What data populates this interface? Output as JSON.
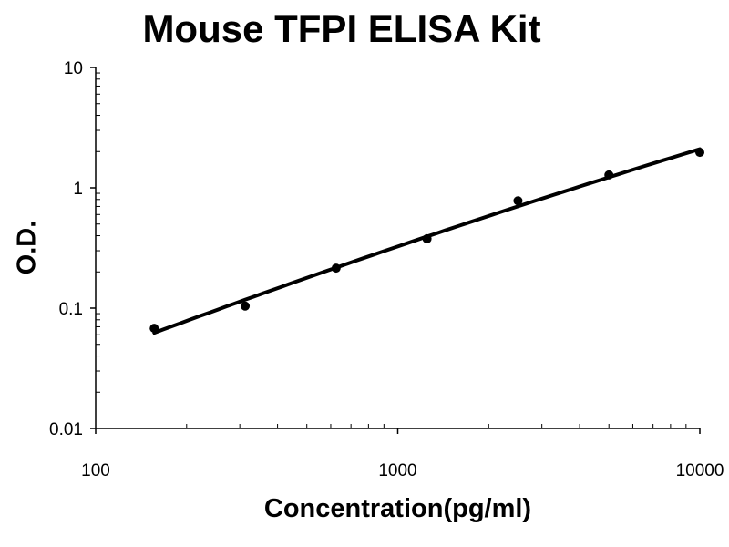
{
  "chart_data": {
    "type": "scatter",
    "title": "Mouse TFPI ELISA Kit",
    "xlabel": "Concentration(pg/ml)",
    "ylabel": "O.D.",
    "xscale": "log",
    "yscale": "log",
    "xlim": [
      100,
      10000
    ],
    "ylim": [
      0.01,
      10
    ],
    "xticks": [
      "100",
      "1000",
      "10000"
    ],
    "yticks": [
      "0.01",
      "0.1",
      "1",
      "10"
    ],
    "grid": false,
    "fit_line": true,
    "colors": {
      "points": "#000000",
      "line": "#000000"
    },
    "x": [
      156.25,
      312.5,
      625,
      1250,
      2500,
      5000,
      10000
    ],
    "y": [
      0.068,
      0.104,
      0.215,
      0.377,
      0.78,
      1.28,
      1.97
    ]
  }
}
